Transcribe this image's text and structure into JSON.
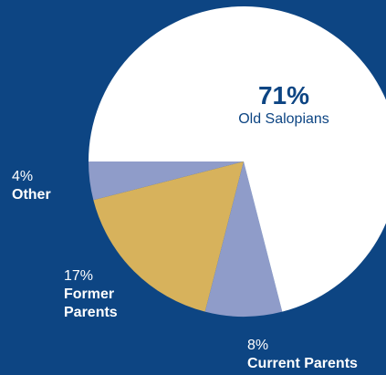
{
  "chart_data": {
    "type": "pie",
    "title": "",
    "start_angle_deg": 180,
    "direction": "counterclockwise",
    "slices": [
      {
        "label": "Other",
        "value_label": "4%",
        "value": 4,
        "color": "#8f9cc9"
      },
      {
        "label": "Former Parents",
        "value_label": "17%",
        "value": 17,
        "color": "#d7b25c"
      },
      {
        "label": "Current Parents",
        "value_label": "8%",
        "value": 8,
        "color": "#8f9cc9"
      },
      {
        "label": "Old Salopians",
        "value_label": "71%",
        "value": 71,
        "color": "#ffffff"
      }
    ]
  },
  "labels": {
    "old_salopians": {
      "pct": "71%",
      "name": "Old Salopians"
    },
    "other": {
      "pct": "4%",
      "name": "Other"
    },
    "former_parents": {
      "pct": "17%",
      "name_line1": "Former",
      "name_line2": "Parents"
    },
    "current_parents": {
      "pct": "8%",
      "name": "Current Parents"
    }
  },
  "colors": {
    "background": "#0d4583",
    "accent_text": "#0d4583"
  }
}
